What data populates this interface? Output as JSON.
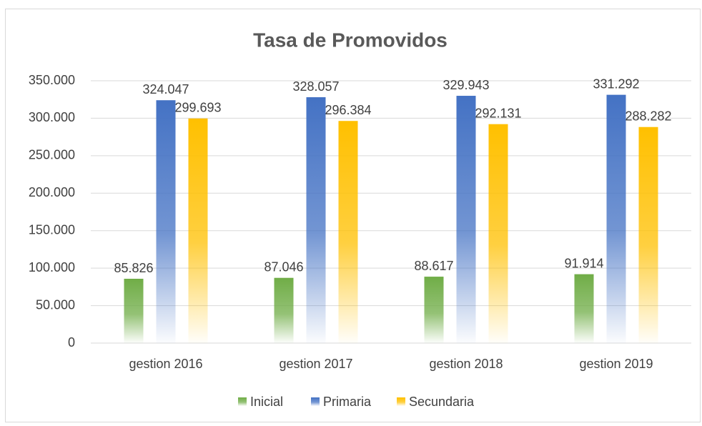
{
  "chart_data": {
    "type": "bar",
    "title": "Tasa de Promovidos",
    "categories": [
      "gestion 2016",
      "gestion 2017",
      "gestion 2018",
      "gestion 2019"
    ],
    "series": [
      {
        "name": "Inicial",
        "color": "#70ad47",
        "values": [
          85826,
          87046,
          88617,
          91914
        ],
        "value_labels": [
          "85.826",
          "87.046",
          "88.617",
          "91.914"
        ]
      },
      {
        "name": "Primaria",
        "color": "#4472c4",
        "values": [
          324047,
          328057,
          329943,
          331292
        ],
        "value_labels": [
          "324.047",
          "328.057",
          "329.943",
          "331.292"
        ]
      },
      {
        "name": "Secundaria",
        "color": "#ffc000",
        "values": [
          299693,
          296384,
          292131,
          288282
        ],
        "value_labels": [
          "299.693",
          "296.384",
          "292.131",
          "288.282"
        ]
      }
    ],
    "ylim": [
      0,
      350000
    ],
    "yticks": [
      0,
      {
        "value": 50000,
        "label": "50.000"
      },
      {
        "value": 100000,
        "label": "100.000"
      },
      {
        "value": 150000,
        "label": "150.000"
      },
      {
        "value": 200000,
        "label": "200.000"
      },
      {
        "value": 250000,
        "label": "250.000"
      },
      {
        "value": 300000,
        "label": "300.000"
      },
      {
        "value": 350000,
        "label": "350.000"
      }
    ],
    "grid": true,
    "legend": "bottom"
  }
}
